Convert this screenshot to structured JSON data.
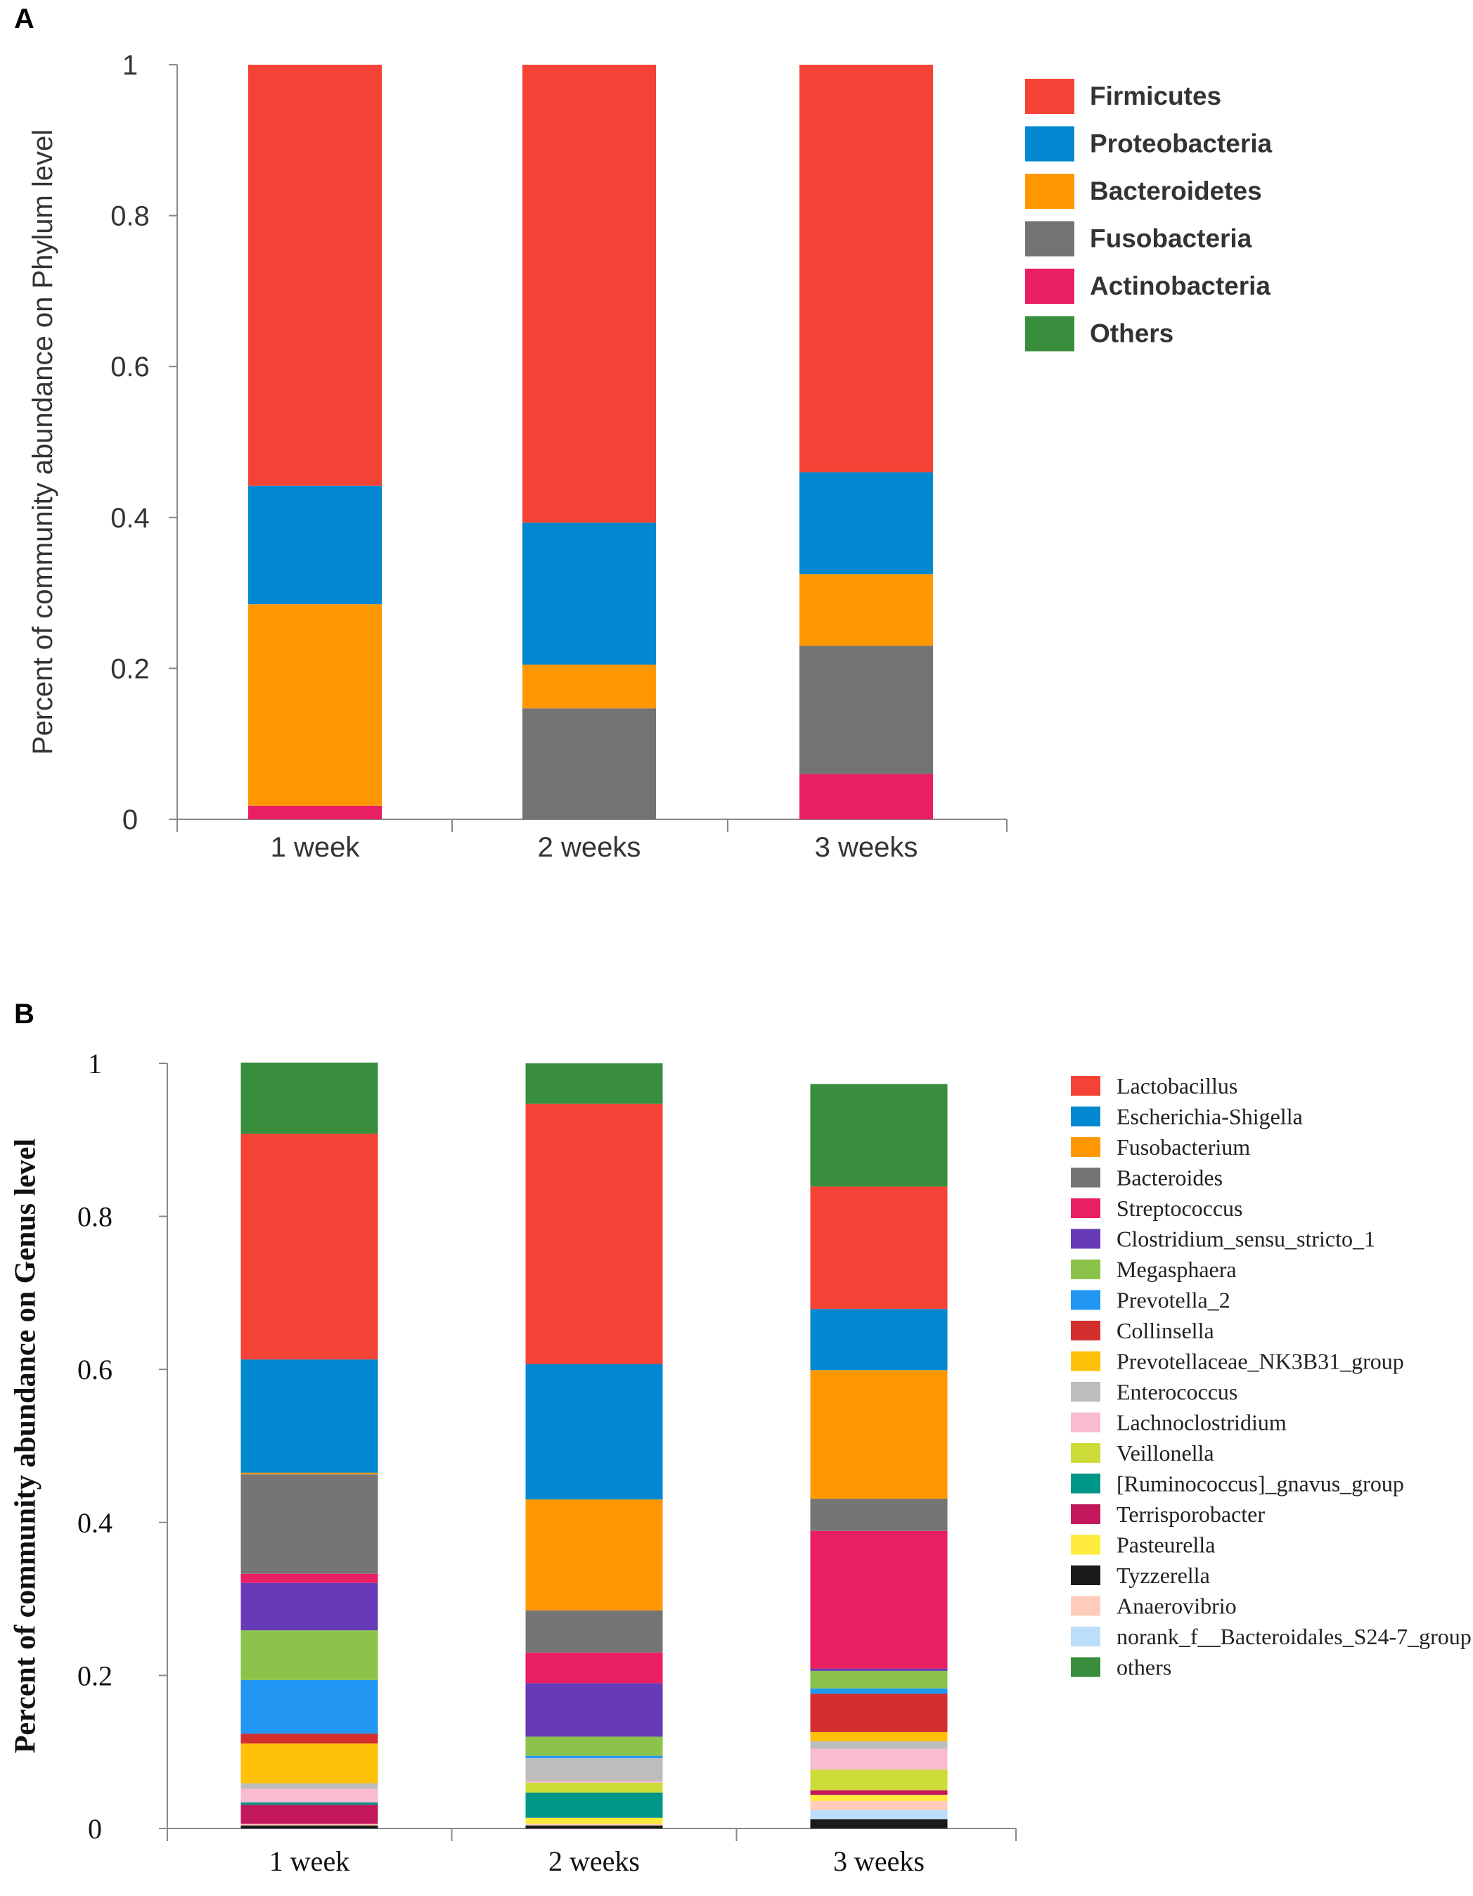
{
  "chart_data": [
    {
      "panel": "A",
      "type": "bar",
      "stacked": true,
      "ylabel": "Percent of community abundance on Phylum level",
      "xlabel": "",
      "ylim": [
        0,
        1
      ],
      "yticks": [
        "0",
        "0.2",
        "0.4",
        "0.6",
        "0.8",
        "1"
      ],
      "yticks_values": [
        0,
        0.2,
        0.4,
        0.6,
        0.8,
        1
      ],
      "categories": [
        "1 week",
        "2 weeks",
        "3 weeks"
      ],
      "legend_position": "right",
      "series": [
        {
          "name": "Actinobacteria",
          "color": "#e91e63",
          "values": [
            0.018,
            0.0,
            0.06
          ]
        },
        {
          "name": "Fusobacteria",
          "color": "#737373",
          "values": [
            0.0,
            0.147,
            0.17
          ]
        },
        {
          "name": "Bacteroidetes",
          "color": "#ff9800",
          "values": [
            0.267,
            0.058,
            0.095
          ]
        },
        {
          "name": "Proteobacteria",
          "color": "#0288d1",
          "values": [
            0.157,
            0.188,
            0.135
          ]
        },
        {
          "name": "Firmicutes",
          "color": "#f44336",
          "values": [
            0.558,
            0.607,
            0.54
          ]
        },
        {
          "name": "Others",
          "color": "#388e3c",
          "values": [
            0.0,
            0.0,
            0.0
          ]
        }
      ],
      "legend_order": [
        "Firmicutes",
        "Proteobacteria",
        "Bacteroidetes",
        "Fusobacteria",
        "Actinobacteria",
        "Others"
      ]
    },
    {
      "panel": "B",
      "type": "bar",
      "stacked": true,
      "ylabel": "Percent of community abundance on Genus level",
      "xlabel": "",
      "ylim": [
        0,
        1
      ],
      "yticks": [
        "0",
        "0.2",
        "0.4",
        "0.6",
        "0.8",
        "1"
      ],
      "yticks_values": [
        0,
        0.2,
        0.4,
        0.6,
        0.8,
        1
      ],
      "categories": [
        "1 week",
        "2 weeks",
        "3 weeks"
      ],
      "legend_position": "right",
      "series": [
        {
          "name": "Tyzzerella",
          "color": "#1a1a1a",
          "values": [
            0.004,
            0.004,
            0.012
          ]
        },
        {
          "name": "norank_f__Bacteroidales_S24-7_group",
          "color": "#bbdefb",
          "values": [
            0.0,
            0.0,
            0.012
          ]
        },
        {
          "name": "Anaerovibrio",
          "color": "#ffccbc",
          "values": [
            0.002,
            0.002,
            0.012
          ]
        },
        {
          "name": "Pasteurella",
          "color": "#ffeb3b",
          "values": [
            0.0,
            0.008,
            0.008
          ]
        },
        {
          "name": "Terrisporobacter",
          "color": "#c2185b",
          "values": [
            0.025,
            0.0,
            0.006
          ]
        },
        {
          "name": "[Ruminococcus]_gnavus_group",
          "color": "#009688",
          "values": [
            0.003,
            0.033,
            0.0
          ]
        },
        {
          "name": "Veillonella",
          "color": "#cddc39",
          "values": [
            0.0,
            0.013,
            0.027
          ]
        },
        {
          "name": "Lachnoclostridium",
          "color": "#f8bbd0",
          "values": [
            0.018,
            0.002,
            0.027
          ]
        },
        {
          "name": "Enterococcus",
          "color": "#bdbdbd",
          "values": [
            0.007,
            0.03,
            0.01
          ]
        },
        {
          "name": "Prevotellaceae_NK3B31_group",
          "color": "#ffc107",
          "values": [
            0.052,
            0.0,
            0.012
          ]
        },
        {
          "name": "Collinsella",
          "color": "#d32f2f",
          "values": [
            0.013,
            0.0,
            0.05
          ]
        },
        {
          "name": "Prevotella_2",
          "color": "#2196f3",
          "values": [
            0.07,
            0.003,
            0.007
          ]
        },
        {
          "name": "Megasphaera",
          "color": "#8bc34a",
          "values": [
            0.065,
            0.025,
            0.023
          ]
        },
        {
          "name": "Clostridium_sensu_stricto_1",
          "color": "#673ab7",
          "values": [
            0.062,
            0.07,
            0.003
          ]
        },
        {
          "name": "Streptococcus",
          "color": "#e91e63",
          "values": [
            0.012,
            0.04,
            0.18
          ]
        },
        {
          "name": "Bacteroides",
          "color": "#757575",
          "values": [
            0.13,
            0.055,
            0.042
          ]
        },
        {
          "name": "Fusobacterium",
          "color": "#ff9800",
          "values": [
            0.002,
            0.145,
            0.168
          ]
        },
        {
          "name": "Escherichia-Shigella",
          "color": "#0288d1",
          "values": [
            0.148,
            0.177,
            0.08
          ]
        },
        {
          "name": "Lactobacillus",
          "color": "#f44336",
          "values": [
            0.295,
            0.34,
            0.16
          ]
        },
        {
          "name": "others",
          "color": "#388e3c",
          "values": [
            0.093,
            0.053,
            0.134
          ]
        }
      ],
      "legend_order": [
        "Lactobacillus",
        "Escherichia-Shigella",
        "Fusobacterium",
        "Bacteroides",
        "Streptococcus",
        "Clostridium_sensu_stricto_1",
        "Megasphaera",
        "Prevotella_2",
        "Collinsella",
        "Prevotellaceae_NK3B31_group",
        "Enterococcus",
        "Lachnoclostridium",
        "Veillonella",
        "[Ruminococcus]_gnavus_group",
        "Terrisporobacter",
        "Pasteurella",
        "Tyzzerella",
        "Anaerovibrio",
        "norank_f__Bacteroidales_S24-7_group",
        "others"
      ]
    }
  ]
}
